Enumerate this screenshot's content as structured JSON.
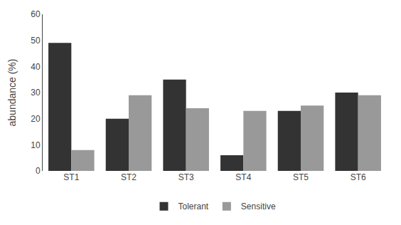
{
  "chart_data": {
    "type": "bar",
    "categories": [
      "ST1",
      "ST2",
      "ST3",
      "ST4",
      "ST5",
      "ST6"
    ],
    "series": [
      {
        "name": "Tolerant",
        "color": "#333333",
        "values": [
          49,
          20,
          35,
          6,
          23,
          30
        ]
      },
      {
        "name": "Sensitive",
        "color": "#999999",
        "values": [
          8,
          29,
          24,
          23,
          25,
          29
        ]
      }
    ],
    "ylabel": "abundance (%)",
    "ylim": [
      0,
      60
    ],
    "yticks": [
      0,
      10,
      20,
      30,
      40,
      50,
      60
    ],
    "grid": false,
    "legend": "bottom"
  }
}
